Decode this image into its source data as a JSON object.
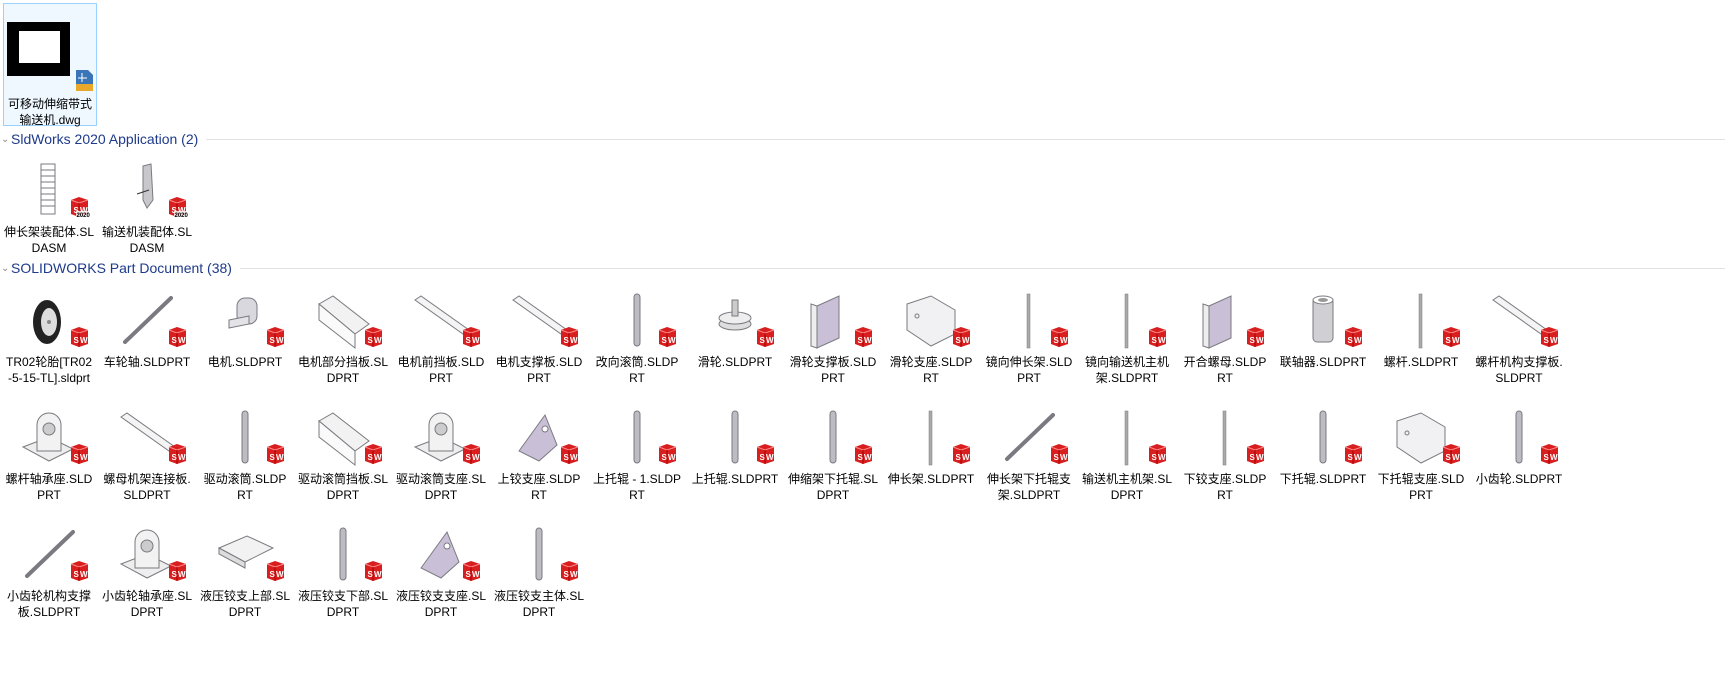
{
  "top_file": {
    "label": "可移动伸缩带式输送机.dwg",
    "icon": "dwg-file-icon"
  },
  "groups": [
    {
      "title": "SldWorks 2020 Application (2)",
      "items": [
        {
          "label": "伸长架装配体.SLDASM",
          "shape": "ladder"
        },
        {
          "label": "输送机装配体.SLDASM",
          "shape": "assembly"
        }
      ],
      "badge": "2020"
    },
    {
      "title": "SOLIDWORKS Part Document (38)",
      "items": [
        {
          "label": "TR02轮胎[TR02-5-15-TL].sldprt",
          "shape": "wheel"
        },
        {
          "label": "车轮轴.SLDPRT",
          "shape": "diag-rod"
        },
        {
          "label": "电机.SLDPRT",
          "shape": "motor"
        },
        {
          "label": "电机部分挡板.SLDPRT",
          "shape": "box"
        },
        {
          "label": "电机前挡板.SLDPRT",
          "shape": "diag-plate"
        },
        {
          "label": "电机支撑板.SLDPRT",
          "shape": "diag-plate"
        },
        {
          "label": "改向滚筒.SLDPRT",
          "shape": "roller"
        },
        {
          "label": "滑轮.SLDPRT",
          "shape": "pulley"
        },
        {
          "label": "滑轮支撑板.SLDPRT",
          "shape": "bracket"
        },
        {
          "label": "滑轮支座.SLDPRT",
          "shape": "block"
        },
        {
          "label": "镜向伸长架.SLDPRT",
          "shape": "thin-rod"
        },
        {
          "label": "镜向输送机主机架.SLDPRT",
          "shape": "thin-rod"
        },
        {
          "label": "开合螺母.SLDPRT",
          "shape": "bracket"
        },
        {
          "label": "联轴器.SLDPRT",
          "shape": "tube"
        },
        {
          "label": "螺杆.SLDPRT",
          "shape": "thin-rod"
        },
        {
          "label": "螺杆机构支撑板.SLDPRT",
          "shape": "diag-plate"
        },
        {
          "label": "螺杆轴承座.SLDPRT",
          "shape": "bearing"
        },
        {
          "label": "螺母机架连接板.SLDPRT",
          "shape": "diag-plate"
        },
        {
          "label": "驱动滚筒.SLDPRT",
          "shape": "roller"
        },
        {
          "label": "驱动滚筒挡板.SLDPRT",
          "shape": "box"
        },
        {
          "label": "驱动滚筒支座.SLDPRT",
          "shape": "bearing"
        },
        {
          "label": "上铰支座.SLDPRT",
          "shape": "hinge"
        },
        {
          "label": "上托辊 - 1.SLDPRT",
          "shape": "roller"
        },
        {
          "label": "上托辊.SLDPRT",
          "shape": "roller"
        },
        {
          "label": "伸缩架下托辊.SLDPRT",
          "shape": "roller"
        },
        {
          "label": "伸长架.SLDPRT",
          "shape": "thin-rod"
        },
        {
          "label": "伸长架下托辊支架.SLDPRT",
          "shape": "diag-rod"
        },
        {
          "label": "输送机主机架.SLDPRT",
          "shape": "thin-rod"
        },
        {
          "label": "下铰支座.SLDPRT",
          "shape": "thin-rod"
        },
        {
          "label": "下托辊.SLDPRT",
          "shape": "roller"
        },
        {
          "label": "下托辊支座.SLDPRT",
          "shape": "block"
        },
        {
          "label": "小齿轮.SLDPRT",
          "shape": "roller"
        },
        {
          "label": "小齿轮机构支撑板.SLDPRT",
          "shape": "diag-rod"
        },
        {
          "label": "小齿轮轴承座.SLDPRT",
          "shape": "bearing"
        },
        {
          "label": "液压铰支上部.SLDPRT",
          "shape": "plate"
        },
        {
          "label": "液压铰支下部.SLDPRT",
          "shape": "roller"
        },
        {
          "label": "液压铰支支座.SLDPRT",
          "shape": "hinge"
        },
        {
          "label": "液压铰支主体.SLDPRT",
          "shape": "roller"
        }
      ]
    }
  ],
  "colors": {
    "group_title": "#1e3a8a",
    "sw_badge": "#d81e1e",
    "selection_border": "#99d1ff"
  }
}
